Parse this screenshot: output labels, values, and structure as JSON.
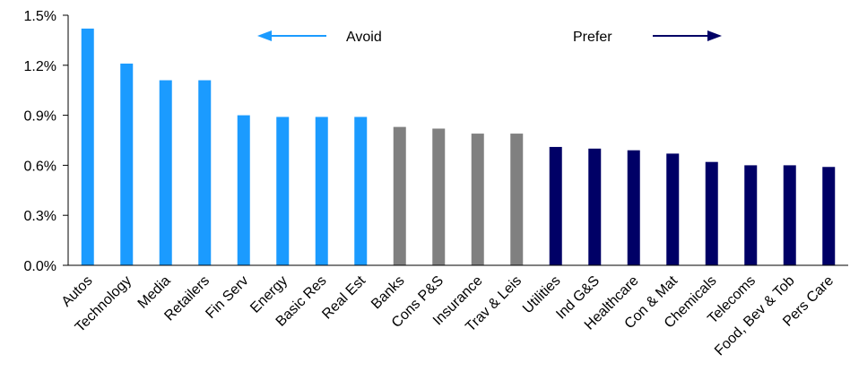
{
  "chart_data": {
    "type": "bar",
    "title": "",
    "xlabel": "",
    "ylabel": "",
    "ylim": [
      0,
      1.5
    ],
    "yticks": [
      "0.0%",
      "0.3%",
      "0.6%",
      "0.9%",
      "1.2%",
      "1.5%"
    ],
    "ytick_values": [
      0,
      0.3,
      0.6,
      0.9,
      1.2,
      1.5
    ],
    "grid": false,
    "categories": [
      "Autos",
      "Technology",
      "Media",
      "Retailers",
      "Fin Serv",
      "Energy",
      "Basic Res",
      "Real Est",
      "Banks",
      "Cons P&S",
      "Insurance",
      "Trav & Leis",
      "Utilities",
      "Ind G&S",
      "Healthcare",
      "Con & Mat",
      "Chemicals",
      "Telecoms",
      "Food, Bev & Tob",
      "Pers Care"
    ],
    "values": [
      1.42,
      1.21,
      1.11,
      1.11,
      0.9,
      0.89,
      0.89,
      0.89,
      0.83,
      0.82,
      0.79,
      0.79,
      0.71,
      0.7,
      0.69,
      0.67,
      0.62,
      0.6,
      0.6,
      0.59
    ],
    "groups": [
      "avoid",
      "avoid",
      "avoid",
      "avoid",
      "avoid",
      "avoid",
      "avoid",
      "avoid",
      "neutral",
      "neutral",
      "neutral",
      "neutral",
      "prefer",
      "prefer",
      "prefer",
      "prefer",
      "prefer",
      "prefer",
      "prefer",
      "prefer"
    ],
    "colors": {
      "avoid": "#1B9BFF",
      "neutral": "#808080",
      "prefer": "#000066",
      "axis": "#000000"
    },
    "legend": {
      "placement": "top-center",
      "avoid_label": "Avoid",
      "prefer_label": "Prefer"
    }
  }
}
